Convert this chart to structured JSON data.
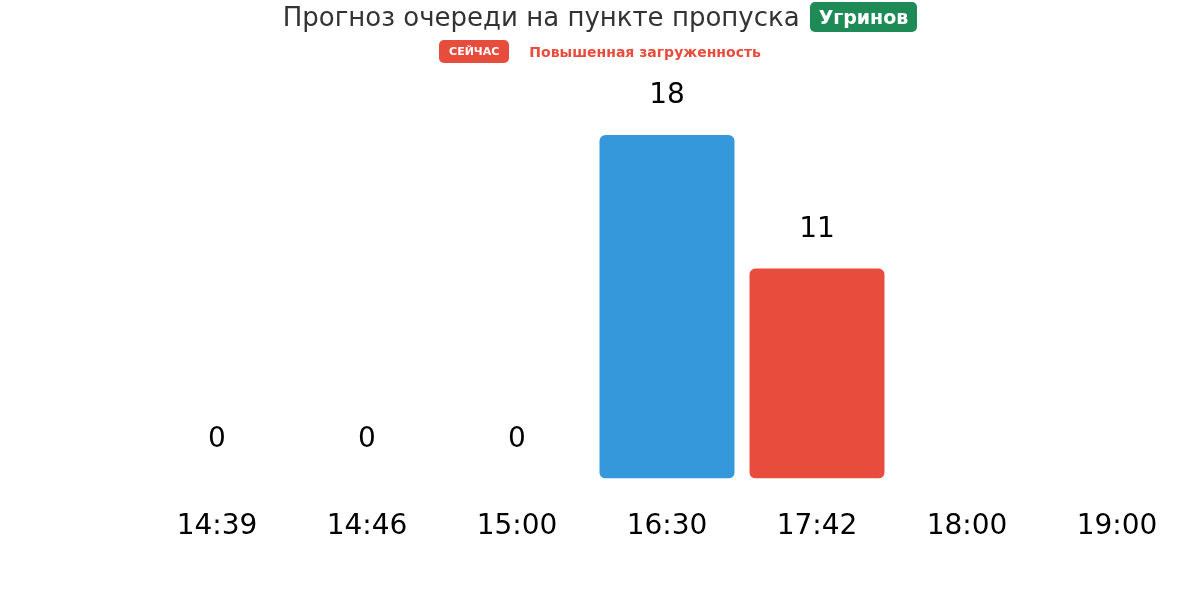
{
  "chart_data": {
    "type": "bar",
    "title": "Прогноз очереди на пункте пропуска",
    "annotations": [
      "Угринов",
      "СЕЙЧАС",
      "Повышенная загруженность"
    ],
    "categories": [
      "14:39",
      "14:46",
      "15:00",
      "16:30",
      "17:42",
      "18:00",
      "19:00"
    ],
    "values": [
      0,
      0,
      0,
      18,
      11,
      null,
      null
    ],
    "colors": [
      "#3498db",
      "#3498db",
      "#3498db",
      "#3498db",
      "#e74c3c",
      "#3498db",
      "#3498db"
    ],
    "data_labels": true,
    "grid": false,
    "legend": false
  }
}
